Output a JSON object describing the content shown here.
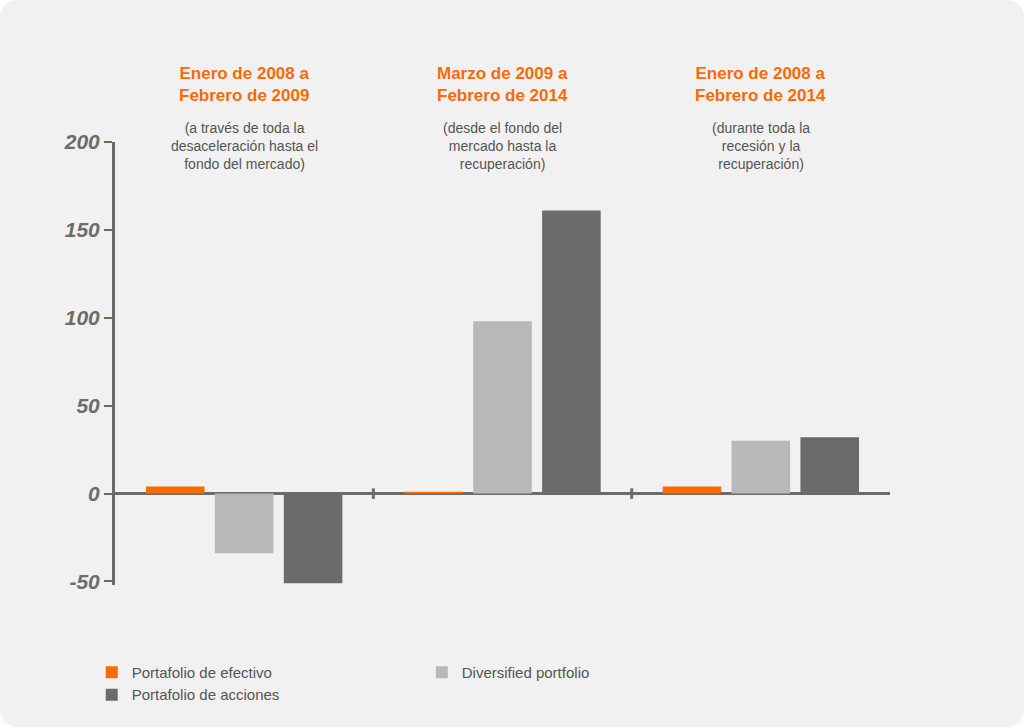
{
  "chart_data": {
    "type": "bar",
    "categories": [
      "Enero de 2008 a Febrero de 2009",
      "Marzo de 2009 a Febrero de 2014",
      "Enero de 2008 a Febrero de 2014"
    ],
    "annotations": [
      "(a través de toda la desaceleración hasta el fondo del mercado)",
      "(desde el fondo del mercado hasta la recuperación)",
      "(durante toda la recesión y la recuperación)"
    ],
    "series": [
      {
        "name": "Portafolio de efectivo",
        "color": "#ff6a00",
        "values": [
          4,
          1,
          4
        ]
      },
      {
        "name": "Diversified portfolio",
        "color": "#b8b8b8",
        "values": [
          -34,
          98,
          30
        ]
      },
      {
        "name": "Portafolio de acciones",
        "color": "#6b6b6b",
        "values": [
          -51,
          161,
          32
        ]
      }
    ],
    "ylim": [
      -52,
      200
    ],
    "yticks": [
      -50,
      0,
      50,
      100,
      150,
      200
    ],
    "grid": false,
    "legend": "bottom",
    "tick_labels": "y"
  }
}
